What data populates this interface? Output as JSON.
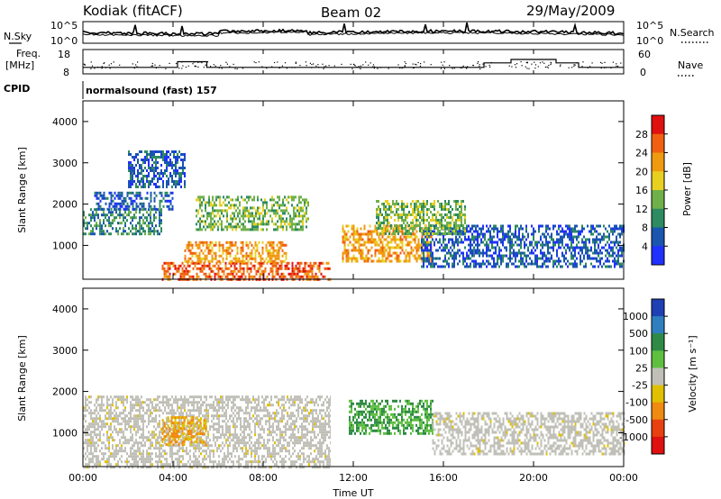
{
  "header": {
    "station": "Kodiak (fitACF)",
    "beam": "Beam 02",
    "date": "29/May/2009"
  },
  "side_labels": {
    "nsky": "N.Sky",
    "freq_line1": "Freq.",
    "freq_line2": "[MHz]",
    "cpid": "CPID",
    "nsearch": "N.Search",
    "nave": "Nave"
  },
  "cpid_text": "normalsound (fast) 157",
  "noise_ticks": {
    "top": "10^5",
    "bottom": "10^0"
  },
  "freq_ticks": [
    "18",
    "8"
  ],
  "nave_ticks": [
    "60",
    "0"
  ],
  "time_axis": {
    "label": "Time UT",
    "ticks": [
      "00:00",
      "04:00",
      "08:00",
      "12:00",
      "16:00",
      "20:00",
      "00:00"
    ]
  },
  "range_axis": {
    "label": "Slant Range [km]",
    "ticks": [
      "4000",
      "3000",
      "2000",
      "1000"
    ]
  },
  "power_scale": {
    "label": "Power [dB]",
    "ticks": [
      "28",
      "24",
      "20",
      "16",
      "12",
      "8",
      "4"
    ],
    "colors": [
      "#2030ff",
      "#1a55b0",
      "#2e8a60",
      "#6fb04a",
      "#e8d020",
      "#f09a10",
      "#f06010",
      "#e01010"
    ]
  },
  "velocity_scale": {
    "label": "Velocity [m s⁻¹]",
    "ticks": [
      "1000",
      "500",
      "100",
      "25",
      "-25",
      "-100",
      "-500",
      "-1000"
    ],
    "colors": [
      "#1f3fb5",
      "#2f7fc0",
      "#2e8a45",
      "#5fc040",
      "#c0c0b8",
      "#e0c000",
      "#f08a10",
      "#e84010",
      "#e01010"
    ]
  },
  "chart_data": {
    "type": "heatmap",
    "x_range": [
      "00:00",
      "24:00"
    ],
    "y_range_km": [
      180,
      4500
    ],
    "freq_range_mhz": [
      8,
      18
    ],
    "nave_range": [
      0,
      60
    ],
    "power_regions": [
      {
        "t0": 0.0,
        "t1": 3.5,
        "r0": 1250,
        "r1": 1900,
        "level": 12
      },
      {
        "t0": 0.5,
        "t1": 4.0,
        "r0": 1900,
        "r1": 2300,
        "level": 8
      },
      {
        "t0": 2.0,
        "t1": 4.5,
        "r0": 2400,
        "r1": 3300,
        "level": 8
      },
      {
        "t0": 3.5,
        "t1": 11.0,
        "r0": 180,
        "r1": 600,
        "level": 28
      },
      {
        "t0": 4.5,
        "t1": 9.0,
        "r0": 600,
        "r1": 1100,
        "level": 24
      },
      {
        "t0": 5.0,
        "t1": 10.0,
        "r0": 1400,
        "r1": 2200,
        "level": 16
      },
      {
        "t0": 11.5,
        "t1": 15.5,
        "r0": 600,
        "r1": 1500,
        "level": 24
      },
      {
        "t0": 15.0,
        "t1": 24.0,
        "r0": 500,
        "r1": 1500,
        "level": 8
      },
      {
        "t0": 13.0,
        "t1": 17.0,
        "r0": 1300,
        "r1": 2100,
        "level": 16
      }
    ],
    "velocity_regions": [
      {
        "t0": 0.0,
        "t1": 11.0,
        "r0": 180,
        "r1": 1900,
        "v": 0
      },
      {
        "t0": 3.5,
        "t1": 5.5,
        "r0": 700,
        "r1": 1400,
        "v": -300
      },
      {
        "t0": 11.8,
        "t1": 15.5,
        "r0": 1000,
        "r1": 1800,
        "v": 200
      },
      {
        "t0": 15.5,
        "t1": 24.0,
        "r0": 500,
        "r1": 1500,
        "v": 0
      }
    ]
  }
}
